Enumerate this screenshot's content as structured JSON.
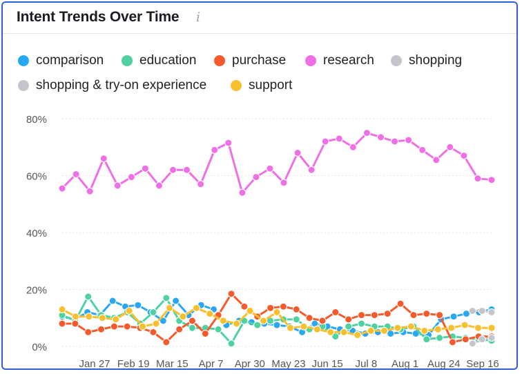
{
  "header": {
    "title": "Intent Trends Over Time",
    "info_icon": "info-icon",
    "info_glyph": "i"
  },
  "chart_data": {
    "type": "line",
    "title": "Intent Trends Over Time",
    "xlabel": "",
    "ylabel": "",
    "ylim": [
      0,
      80
    ],
    "y_unit": "%",
    "y_ticks": [
      "0%",
      "20%",
      "40%",
      "60%",
      "80%"
    ],
    "x_ticks": [
      "Jan 27",
      "Feb 19",
      "Mar 15",
      "Apr 7",
      "Apr 30",
      "May 23",
      "Jun 15",
      "Jul 8",
      "Aug 1",
      "Aug 24",
      "Sep 16"
    ],
    "grid": "horizontal",
    "legend_position": "top-left",
    "x_points": [
      0,
      1,
      2,
      3,
      4,
      5,
      6,
      7,
      8,
      9,
      10,
      11,
      12,
      13,
      14,
      15,
      16,
      17,
      18,
      19,
      20,
      21,
      22,
      23,
      24,
      25,
      26,
      27,
      28,
      29,
      30,
      31,
      32,
      33,
      34,
      35,
      36,
      37,
      38,
      39,
      40,
      41,
      42,
      43,
      44,
      45
    ],
    "series": [
      {
        "name": "comparison",
        "color": "#2aa7f3",
        "points": [
          [
            0,
            10.5
          ],
          [
            1,
            9.5
          ],
          [
            2,
            12
          ],
          [
            3,
            11
          ],
          [
            4,
            16
          ],
          [
            5,
            14
          ],
          [
            6,
            14.5
          ],
          [
            7,
            12
          ],
          [
            8,
            9
          ],
          [
            9,
            16
          ],
          [
            10,
            11
          ],
          [
            11,
            14.5
          ],
          [
            12,
            13
          ],
          [
            13,
            7.5
          ],
          [
            14,
            9
          ],
          [
            15,
            8.5
          ],
          [
            16,
            8
          ],
          [
            17,
            7.5
          ],
          [
            18,
            7
          ],
          [
            19,
            5
          ],
          [
            20,
            8
          ],
          [
            21,
            7
          ],
          [
            22,
            6
          ],
          [
            23,
            5.5
          ],
          [
            24,
            4.5
          ],
          [
            25,
            5
          ],
          [
            26,
            4.5
          ],
          [
            27,
            5
          ],
          [
            28,
            4.5
          ],
          [
            29,
            4
          ],
          [
            30,
            9.5
          ],
          [
            31,
            10.5
          ],
          [
            32,
            11.5
          ],
          [
            33,
            12
          ],
          [
            34,
            13
          ]
        ]
      },
      {
        "name": "education",
        "color": "#4fd1a0",
        "points": [
          [
            0,
            11
          ],
          [
            1,
            9
          ],
          [
            2,
            17.5
          ],
          [
            3,
            11
          ],
          [
            4,
            10
          ],
          [
            5,
            12
          ],
          [
            6,
            8
          ],
          [
            7,
            12
          ],
          [
            8,
            17
          ],
          [
            9,
            9
          ],
          [
            10,
            6.5
          ],
          [
            11,
            6.5
          ],
          [
            12,
            6
          ],
          [
            13,
            1
          ],
          [
            14,
            9
          ],
          [
            15,
            7.5
          ],
          [
            16,
            9
          ],
          [
            17,
            9.5
          ],
          [
            18,
            9.5
          ],
          [
            19,
            6
          ],
          [
            20,
            7
          ],
          [
            21,
            3.5
          ],
          [
            22,
            7
          ],
          [
            23,
            8
          ],
          [
            24,
            7
          ],
          [
            25,
            7
          ],
          [
            26,
            6
          ],
          [
            27,
            7
          ],
          [
            28,
            2.5
          ],
          [
            29,
            3
          ],
          [
            30,
            3.5
          ],
          [
            31,
            3
          ],
          [
            32,
            2.5
          ],
          [
            33,
            2
          ]
        ]
      },
      {
        "name": "purchase",
        "color": "#f55a2c",
        "points": [
          [
            0,
            8
          ],
          [
            1,
            8
          ],
          [
            2,
            5
          ],
          [
            3,
            6
          ],
          [
            4,
            7
          ],
          [
            5,
            7
          ],
          [
            6,
            6.5
          ],
          [
            7,
            5
          ],
          [
            8,
            1.5
          ],
          [
            9,
            6
          ],
          [
            10,
            9
          ],
          [
            11,
            4.5
          ],
          [
            12,
            11
          ],
          [
            13,
            18.5
          ],
          [
            14,
            14
          ],
          [
            15,
            10.5
          ],
          [
            16,
            13.5
          ],
          [
            17,
            14
          ],
          [
            18,
            13
          ],
          [
            19,
            10
          ],
          [
            20,
            9
          ],
          [
            21,
            12
          ],
          [
            22,
            9.5
          ],
          [
            23,
            11
          ],
          [
            24,
            11
          ],
          [
            25,
            11.5
          ],
          [
            26,
            15
          ],
          [
            27,
            11
          ],
          [
            28,
            11.5
          ],
          [
            29,
            11
          ],
          [
            30,
            1.5
          ],
          [
            31,
            2.5
          ],
          [
            32,
            3.5
          ],
          [
            33,
            3.5
          ]
        ]
      },
      {
        "name": "research",
        "color": "#ef70e6",
        "points": [
          [
            0,
            55.5
          ],
          [
            1,
            60.5
          ],
          [
            2,
            54.5
          ],
          [
            3,
            66
          ],
          [
            4,
            56.5
          ],
          [
            5,
            59.5
          ],
          [
            6,
            62.5
          ],
          [
            7,
            56.5
          ],
          [
            8,
            62
          ],
          [
            9,
            62
          ],
          [
            10,
            57
          ],
          [
            11,
            69
          ],
          [
            12,
            71.5
          ],
          [
            13,
            54
          ],
          [
            14,
            59.5
          ],
          [
            15,
            62.5
          ],
          [
            16,
            57.5
          ],
          [
            17,
            68
          ],
          [
            18,
            62
          ],
          [
            19,
            72
          ],
          [
            20,
            73
          ],
          [
            21,
            70
          ],
          [
            22,
            75
          ],
          [
            23,
            73.5
          ],
          [
            24,
            72
          ],
          [
            25,
            72.5
          ],
          [
            26,
            69
          ],
          [
            27,
            65.5
          ],
          [
            28,
            70
          ],
          [
            29,
            67
          ],
          [
            30,
            59
          ],
          [
            31,
            58.5
          ]
        ]
      },
      {
        "name": "shopping",
        "color": "#c4c6cb",
        "points": [
          [
            0,
            1
          ],
          [
            1,
            2.5
          ],
          [
            2,
            3
          ]
        ]
      },
      {
        "name": "shopping & try-on experience",
        "color": "#c4c6cb",
        "points": [
          [
            0,
            12.5
          ],
          [
            1,
            12.5
          ],
          [
            2,
            12
          ]
        ]
      },
      {
        "name": "support",
        "color": "#f8c02e",
        "points": [
          [
            0,
            13
          ],
          [
            1,
            10.5
          ],
          [
            2,
            10.5
          ],
          [
            3,
            10
          ],
          [
            4,
            9.5
          ],
          [
            5,
            12.5
          ],
          [
            6,
            7
          ],
          [
            7,
            8
          ],
          [
            8,
            13.5
          ],
          [
            9,
            10.5
          ],
          [
            10,
            13.5
          ],
          [
            11,
            11.5
          ],
          [
            12,
            9
          ],
          [
            13,
            8
          ],
          [
            14,
            12.5
          ],
          [
            15,
            9
          ],
          [
            16,
            12
          ],
          [
            17,
            6.5
          ],
          [
            18,
            7
          ],
          [
            19,
            6
          ],
          [
            20,
            5
          ],
          [
            21,
            5
          ],
          [
            22,
            4
          ],
          [
            23,
            5.5
          ],
          [
            24,
            5.5
          ],
          [
            25,
            6.5
          ],
          [
            26,
            7
          ],
          [
            27,
            5.5
          ],
          [
            28,
            6
          ],
          [
            29,
            6.5
          ],
          [
            30,
            7.5
          ],
          [
            31,
            6.5
          ],
          [
            32,
            6.5
          ]
        ]
      }
    ]
  }
}
